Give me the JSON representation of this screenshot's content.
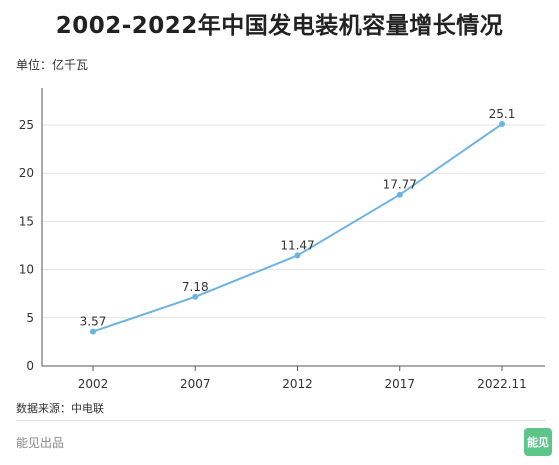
{
  "title": "2002-2022年中国发电装机容量增长情况",
  "unit_label": "单位：亿千瓦",
  "source_label": "数据来源：中电联",
  "brand_label": "能见出品",
  "logo_text": "能见",
  "colors": {
    "line": "#6cb4e4",
    "grid": "#e3e3e3",
    "axis": "#555555",
    "logo_bg": "#5cc58a"
  },
  "chart_data": {
    "type": "line",
    "categories": [
      "2002",
      "2007",
      "2012",
      "2017",
      "2022.11"
    ],
    "series": [
      {
        "values": [
          3.57,
          7.18,
          11.47,
          17.77,
          25.1
        ]
      }
    ],
    "data_labels": [
      "3.57",
      "7.18",
      "11.47",
      "17.77",
      "25.1"
    ],
    "y_ticks": [
      0,
      5,
      10,
      15,
      20,
      25
    ],
    "ylim": [
      0,
      25
    ],
    "grid": true
  }
}
